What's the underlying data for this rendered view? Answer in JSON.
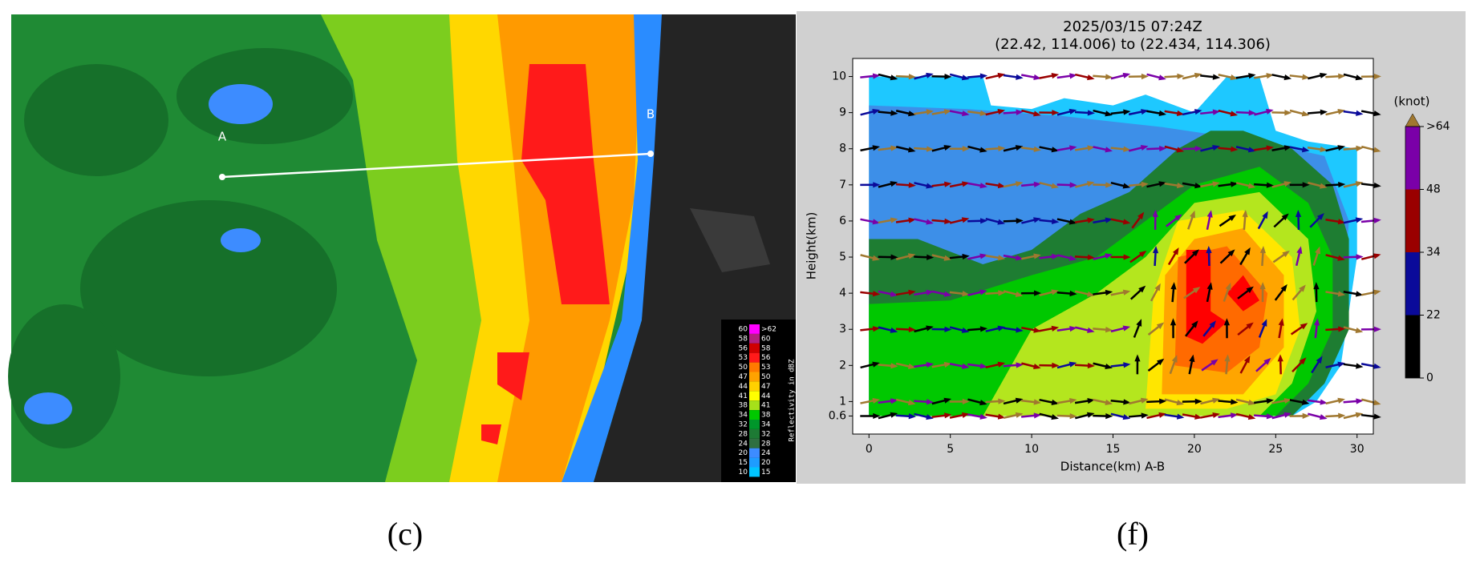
{
  "panels": [
    {
      "label": "(c)"
    },
    {
      "label": "(f)"
    }
  ],
  "map": {
    "point_a": "A",
    "point_b": "B",
    "legend": {
      "title": "Reflectivity in dBZ",
      "rows": [
        {
          "low": "60",
          "high": ">62",
          "color": "#ff00ff"
        },
        {
          "low": "58",
          "high": "60",
          "color": "#b4207f"
        },
        {
          "low": "56",
          "high": "58",
          "color": "#d00000"
        },
        {
          "low": "53",
          "high": "56",
          "color": "#ff1a1a"
        },
        {
          "low": "50",
          "high": "53",
          "color": "#ff7a00"
        },
        {
          "low": "47",
          "high": "50",
          "color": "#ffa200"
        },
        {
          "low": "44",
          "high": "47",
          "color": "#ffd000"
        },
        {
          "low": "41",
          "high": "44",
          "color": "#ffff00"
        },
        {
          "low": "38",
          "high": "41",
          "color": "#a6e01a"
        },
        {
          "low": "34",
          "high": "38",
          "color": "#00c800"
        },
        {
          "low": "32",
          "high": "34",
          "color": "#00962a"
        },
        {
          "low": "28",
          "high": "32",
          "color": "#1d7a34"
        },
        {
          "low": "24",
          "high": "28",
          "color": "#2f6f40"
        },
        {
          "low": "20",
          "high": "24",
          "color": "#3d8cff"
        },
        {
          "low": "15",
          "high": "20",
          "color": "#1e9cff"
        },
        {
          "low": "10",
          "high": "15",
          "color": "#00c4ff"
        }
      ]
    }
  },
  "chart_data": {
    "type": "contour",
    "title": "2025/03/15 07:24Z",
    "subtitle": "(22.42, 114.006) to (22.434, 114.306)",
    "x_label": "Distance(km) A-B",
    "y_label": "Height(km)",
    "xlim": [
      -1,
      31
    ],
    "xticks": [
      0,
      5,
      10,
      15,
      20,
      25,
      30
    ],
    "ylim": [
      0.1,
      10.5
    ],
    "yticks": [
      0.6,
      1,
      2,
      3,
      4,
      5,
      6,
      7,
      8,
      9,
      10
    ],
    "colorbar": {
      "label": "(knot)",
      "ticks": [
        0,
        22,
        34,
        48,
        {
          "value": 64,
          "label": ">64"
        }
      ],
      "colors": [
        "#000000",
        "#0a0a9a",
        "#9a0000",
        "#7a00a8"
      ],
      "extend_color": "#a07830"
    }
  }
}
